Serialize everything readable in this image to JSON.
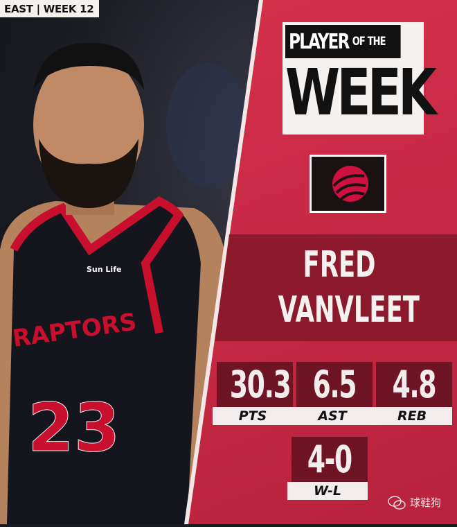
{
  "header": {
    "tag": "EAST | WEEK 12"
  },
  "title": {
    "line1": "PLAYER",
    "line1b": "OF THE",
    "line2": "WEEK"
  },
  "team_logo": {
    "icon": "raptors-basketball-claw-logo",
    "colors": [
      "#ce1141",
      "#1a1212"
    ]
  },
  "player": {
    "first": "FRED",
    "last": "VANVLEET",
    "jersey_text": "RAPTORS",
    "jersey_number": "23",
    "sponsor": "Sun Life"
  },
  "stats": [
    {
      "value": "30.3",
      "label": "PTS"
    },
    {
      "value": "6.5",
      "label": "AST"
    },
    {
      "value": "4.8",
      "label": "REB"
    },
    {
      "value": "4-0",
      "label": "W-L"
    }
  ],
  "watermark": {
    "icon": "wechat-icon",
    "text": "球鞋狗"
  },
  "colors": {
    "panel": "#c92a45",
    "band": "#8c1a2c",
    "stat_box": "#6e1424",
    "light": "#f4f1ee"
  }
}
